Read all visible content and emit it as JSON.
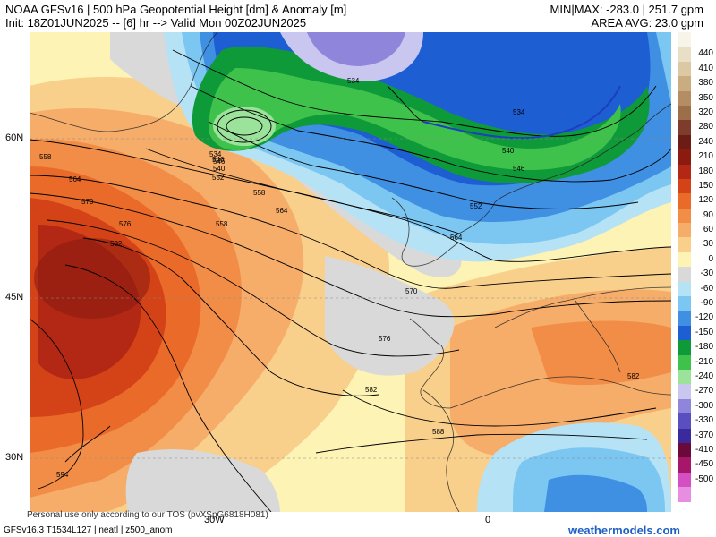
{
  "header": {
    "title_line": "NOAA GFSv16 | 500 hPa Geopotential Height [dm] & Anomaly [m]",
    "init_line": "Init: 18Z01JUN2025 -- [6] hr --> Valid Mon 00Z02JUN2025",
    "minmax": "MIN|MAX: -283.0 | 251.7 gpm",
    "area_avg": "AREA AVG: 23.0 gpm"
  },
  "axes": {
    "lat_labels": [
      "60N",
      "45N",
      "30N"
    ],
    "lon_labels": [
      "30W",
      "0"
    ]
  },
  "contours": {
    "labels": [
      "534",
      "534",
      "534",
      "540",
      "540",
      "546",
      "546",
      "546",
      "552",
      "552",
      "558",
      "558",
      "558",
      "564",
      "564",
      "564",
      "570",
      "570",
      "576",
      "576",
      "582",
      "582",
      "582",
      "588",
      "594"
    ]
  },
  "legend": {
    "items": [
      {
        "label": "",
        "color": "#f7f4ea"
      },
      {
        "label": "440",
        "color": "#e9dfc6"
      },
      {
        "label": "410",
        "color": "#dcc9a3"
      },
      {
        "label": "380",
        "color": "#c9ad80"
      },
      {
        "label": "350",
        "color": "#b48e62"
      },
      {
        "label": "320",
        "color": "#9d6e4a"
      },
      {
        "label": "280",
        "color": "#7e3d2c"
      },
      {
        "label": "240",
        "color": "#6b1c14"
      },
      {
        "label": "210",
        "color": "#8b1a10"
      },
      {
        "label": "180",
        "color": "#b22814"
      },
      {
        "label": "150",
        "color": "#d44218"
      },
      {
        "label": "120",
        "color": "#ea6a2a"
      },
      {
        "label": "90",
        "color": "#f28d48"
      },
      {
        "label": "60",
        "color": "#f6ad6a"
      },
      {
        "label": "30",
        "color": "#f9cf8c"
      },
      {
        "label": "0",
        "color": "#fcf3b4"
      },
      {
        "label": "-30",
        "color": "#d9d9d9"
      },
      {
        "label": "-60",
        "color": "#b6e2f6"
      },
      {
        "label": "-90",
        "color": "#7cc6f2"
      },
      {
        "label": "-120",
        "color": "#3f8fe2"
      },
      {
        "label": "-150",
        "color": "#1d5ed2"
      },
      {
        "label": "-180",
        "color": "#0f9a3a"
      },
      {
        "label": "-210",
        "color": "#3fc24c"
      },
      {
        "label": "-240",
        "color": "#9be29a"
      },
      {
        "label": "-270",
        "color": "#c9c6f0"
      },
      {
        "label": "-300",
        "color": "#8f86dc"
      },
      {
        "label": "-330",
        "color": "#5a4fc0"
      },
      {
        "label": "-370",
        "color": "#3b2a9e"
      },
      {
        "label": "-410",
        "color": "#6b0a3a"
      },
      {
        "label": "-450",
        "color": "#a6176c"
      },
      {
        "label": "-500",
        "color": "#d44ec4"
      },
      {
        "label": "",
        "color": "#e78ee0"
      }
    ]
  },
  "footer": {
    "run_info": "GFSv16.3 T1534L127 | neatl | z500_anom",
    "notice": "Personal use only according to our TOS (pvXSpG6818H081)",
    "brand": "weathermodels.com"
  }
}
